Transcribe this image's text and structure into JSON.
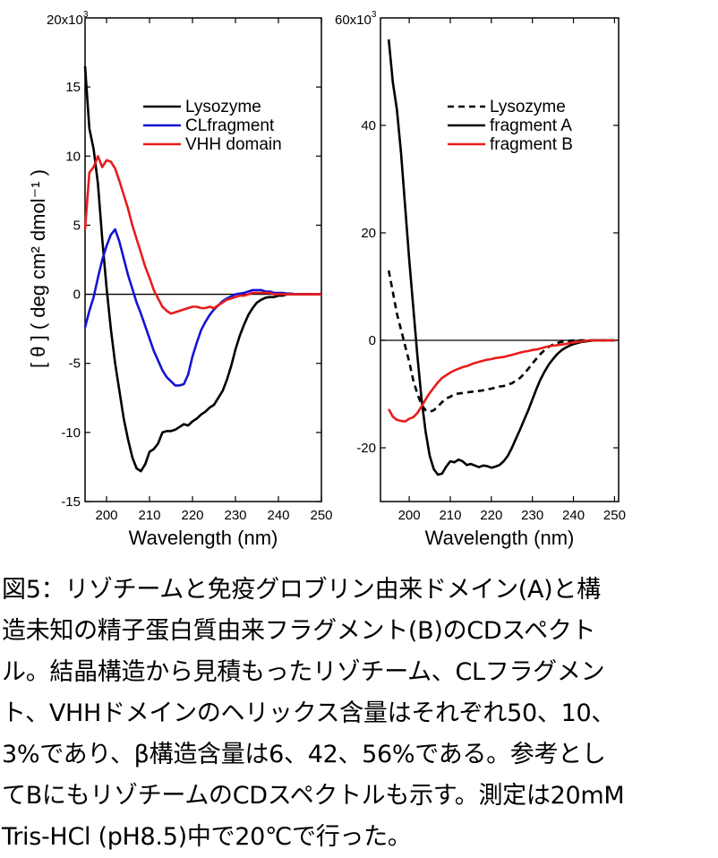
{
  "chart_data": [
    {
      "id": "A",
      "type": "line",
      "xlabel": "Wavelength (nm)",
      "ylabel": "[ θ ] ( deg cm² dmol⁻¹ )",
      "y_scale_label": "20x10",
      "y_scale_exp": "3",
      "xlim": [
        195,
        250
      ],
      "ylim": [
        -15,
        20
      ],
      "x_ticks": [
        200,
        210,
        220,
        230,
        240,
        250
      ],
      "y_ticks": [
        -15,
        -10,
        -5,
        0,
        5,
        10,
        15
      ],
      "legend_position": "top-right",
      "series": [
        {
          "name": "Lysozyme",
          "color": "#000000",
          "dash": false,
          "x": [
            195,
            196,
            197,
            198,
            199,
            200,
            201,
            202,
            203,
            204,
            205,
            206,
            207,
            208,
            209,
            210,
            211,
            212,
            213,
            214,
            215,
            216,
            217,
            218,
            219,
            220,
            221,
            222,
            223,
            224,
            225,
            226,
            227,
            228,
            229,
            230,
            231,
            232,
            233,
            234,
            235,
            236,
            237,
            238,
            239,
            240,
            241,
            242,
            243,
            244,
            245,
            246,
            247,
            248,
            249,
            250
          ],
          "y": [
            16.5,
            12,
            10.5,
            8,
            4,
            0.5,
            -2.5,
            -5,
            -7,
            -9,
            -10.5,
            -11.8,
            -12.6,
            -12.8,
            -12.3,
            -11.4,
            -11.2,
            -10.8,
            -10,
            -9.9,
            -9.9,
            -9.8,
            -9.6,
            -9.4,
            -9.5,
            -9.2,
            -9,
            -8.7,
            -8.5,
            -8.2,
            -8,
            -7.5,
            -7,
            -6.2,
            -5.2,
            -4,
            -3,
            -2.2,
            -1.5,
            -1,
            -0.6,
            -0.4,
            -0.25,
            -0.2,
            -0.2,
            -0.1,
            -0.1,
            0,
            0,
            0,
            0,
            0,
            0,
            0,
            0,
            0
          ]
        },
        {
          "name": "CLfragment",
          "color": "#1414d2",
          "dash": false,
          "x": [
            195,
            196,
            197,
            198,
            199,
            200,
            201,
            202,
            203,
            204,
            205,
            206,
            207,
            208,
            209,
            210,
            211,
            212,
            213,
            214,
            215,
            216,
            217,
            218,
            219,
            220,
            221,
            222,
            223,
            224,
            225,
            226,
            227,
            228,
            229,
            230,
            231,
            232,
            233,
            234,
            235,
            236,
            237,
            238,
            239,
            240,
            241,
            242,
            243,
            244,
            245,
            246,
            247,
            248,
            249,
            250
          ],
          "y": [
            -2.4,
            -1.2,
            -0.2,
            1.2,
            2.5,
            3.5,
            4.3,
            4.7,
            3.8,
            2.6,
            1.4,
            0.4,
            -0.6,
            -1.4,
            -2.3,
            -3.2,
            -4.1,
            -4.8,
            -5.5,
            -6,
            -6.3,
            -6.6,
            -6.6,
            -6.5,
            -5.8,
            -4.5,
            -3.5,
            -2.6,
            -2,
            -1.5,
            -1.1,
            -0.8,
            -0.5,
            -0.3,
            -0.15,
            0,
            0.05,
            0.1,
            0.2,
            0.3,
            0.3,
            0.3,
            0.2,
            0.2,
            0.1,
            0.1,
            0.1,
            0.05,
            0.05,
            0,
            0,
            0,
            0,
            0,
            0,
            0
          ]
        },
        {
          "name": "VHH domain",
          "color": "#e81c1c",
          "dash": false,
          "x": [
            195,
            196,
            197,
            198,
            199,
            200,
            201,
            202,
            203,
            204,
            205,
            206,
            207,
            208,
            209,
            210,
            211,
            212,
            213,
            214,
            215,
            216,
            217,
            218,
            219,
            220,
            221,
            222,
            223,
            224,
            225,
            226,
            227,
            228,
            229,
            230,
            231,
            232,
            233,
            234,
            235,
            236,
            237,
            238,
            239,
            240,
            241,
            242,
            243,
            244,
            245,
            246,
            247,
            248,
            249,
            250
          ],
          "y": [
            4.7,
            8.8,
            9.2,
            10,
            9.2,
            9.7,
            9.6,
            9.1,
            8.2,
            7.2,
            6.2,
            5,
            4,
            3,
            2,
            1.2,
            0.3,
            -0.3,
            -0.9,
            -1.2,
            -1.4,
            -1.3,
            -1.2,
            -1.1,
            -1,
            -0.9,
            -0.9,
            -1,
            -1,
            -0.9,
            -1,
            -0.8,
            -0.6,
            -0.4,
            -0.3,
            -0.2,
            -0.1,
            -0.1,
            0,
            0.1,
            0.1,
            0.1,
            0.1,
            0.1,
            0,
            0,
            0,
            0,
            0,
            0,
            0,
            0,
            0,
            0,
            0,
            0
          ]
        }
      ]
    },
    {
      "id": "B",
      "type": "line",
      "xlabel": "Wavelength (nm)",
      "y_scale_label": "60x10",
      "y_scale_exp": "3",
      "xlim": [
        193,
        251
      ],
      "ylim": [
        -30,
        60
      ],
      "x_ticks": [
        200,
        210,
        220,
        230,
        240,
        250
      ],
      "y_ticks": [
        -20,
        0,
        20,
        40
      ],
      "legend_position": "top-right",
      "series": [
        {
          "name": "Lysozyme",
          "color": "#000000",
          "dash": true,
          "x": [
            195,
            196,
            197,
            198,
            199,
            200,
            201,
            202,
            203,
            204,
            205,
            206,
            207,
            208,
            209,
            210,
            211,
            212,
            213,
            214,
            215,
            216,
            217,
            218,
            219,
            220,
            221,
            222,
            223,
            224,
            225,
            226,
            227,
            228,
            229,
            230,
            231,
            232,
            233,
            234,
            235,
            236,
            237,
            238,
            239,
            240,
            241,
            242,
            243,
            244,
            245,
            246,
            247,
            248,
            249,
            250
          ],
          "y": [
            13,
            9,
            5,
            2,
            -1,
            -4,
            -7.5,
            -10,
            -12,
            -13,
            -13.3,
            -13,
            -12.3,
            -11.5,
            -10.8,
            -10.5,
            -10,
            -9.9,
            -9.8,
            -9.7,
            -9.6,
            -9.5,
            -9.4,
            -9.3,
            -9.1,
            -9,
            -8.8,
            -8.6,
            -8.5,
            -8.2,
            -8,
            -7.5,
            -7,
            -6.2,
            -5.3,
            -4.3,
            -3.4,
            -2.5,
            -1.8,
            -1.2,
            -0.8,
            -0.5,
            -0.3,
            -0.2,
            -0.1,
            0,
            0,
            0,
            0,
            0,
            0,
            0,
            0,
            0,
            0,
            0
          ]
        },
        {
          "name": "fragment A",
          "color": "#000000",
          "dash": false,
          "x": [
            195,
            196,
            197,
            198,
            199,
            200,
            201,
            202,
            203,
            204,
            205,
            206,
            207,
            208,
            209,
            210,
            211,
            212,
            213,
            214,
            215,
            216,
            217,
            218,
            219,
            220,
            221,
            222,
            223,
            224,
            225,
            226,
            227,
            228,
            229,
            230,
            231,
            232,
            233,
            234,
            235,
            236,
            237,
            238,
            239,
            240,
            241,
            242,
            243,
            244,
            245,
            246,
            247,
            248,
            249,
            250
          ],
          "y": [
            56,
            48,
            43,
            35,
            25,
            15,
            6,
            -3,
            -11,
            -17,
            -21.5,
            -24,
            -25,
            -24.8,
            -23.5,
            -22.5,
            -22.7,
            -22.2,
            -22.5,
            -23.2,
            -23,
            -23.3,
            -23.6,
            -23.3,
            -23.4,
            -23.7,
            -23.5,
            -23.2,
            -22.5,
            -21.5,
            -20,
            -18.3,
            -16.6,
            -14.8,
            -13,
            -11,
            -9,
            -7.2,
            -5.8,
            -4.5,
            -3.5,
            -2.6,
            -1.9,
            -1.4,
            -1,
            -0.7,
            -0.5,
            -0.3,
            -0.2,
            -0.1,
            0,
            0,
            0,
            0,
            0,
            0
          ]
        },
        {
          "name": "fragment B",
          "color": "#e81c1c",
          "dash": false,
          "x": [
            195,
            196,
            197,
            198,
            199,
            200,
            201,
            202,
            203,
            204,
            205,
            206,
            207,
            208,
            209,
            210,
            211,
            212,
            213,
            214,
            215,
            216,
            217,
            218,
            219,
            220,
            221,
            222,
            223,
            224,
            225,
            226,
            227,
            228,
            229,
            230,
            231,
            232,
            233,
            234,
            235,
            236,
            237,
            238,
            239,
            240,
            241,
            242,
            243,
            244,
            245,
            246,
            247,
            248,
            249,
            250
          ],
          "y": [
            -12.8,
            -14.2,
            -14.8,
            -15,
            -15.1,
            -14.6,
            -14.3,
            -13.5,
            -12.3,
            -11,
            -9.8,
            -8.8,
            -7.8,
            -7,
            -6.5,
            -6,
            -5.6,
            -5.3,
            -5,
            -4.8,
            -4.5,
            -4.2,
            -4,
            -3.8,
            -3.6,
            -3.5,
            -3.3,
            -3.2,
            -3.1,
            -2.9,
            -2.7,
            -2.5,
            -2.3,
            -2.1,
            -2,
            -1.8,
            -1.7,
            -1.5,
            -1.3,
            -1.1,
            -1,
            -0.9,
            -0.8,
            -0.7,
            -0.5,
            -0.4,
            -0.3,
            -0.2,
            -0.1,
            0,
            0,
            0,
            0,
            0,
            0,
            0
          ]
        }
      ]
    }
  ],
  "caption": [
    "図5：リゾチームと免疫グロブリン由来ドメイン(A)と構",
    "造未知の精子蛋白質由来フラグメント(B)のCDスペクト",
    "ル。結晶構造から見積もったリゾチーム、CLフラグメン",
    "ト、VHHドメインのヘリックス含量はそれぞれ50、10、",
    "3%であり、β構造含量は6、42、56%である。参考とし",
    "てBにもリゾチームのCDスペクトルも示す。測定は20mM",
    "Tris-HCl (pH8.5)中で20℃で行った。"
  ]
}
